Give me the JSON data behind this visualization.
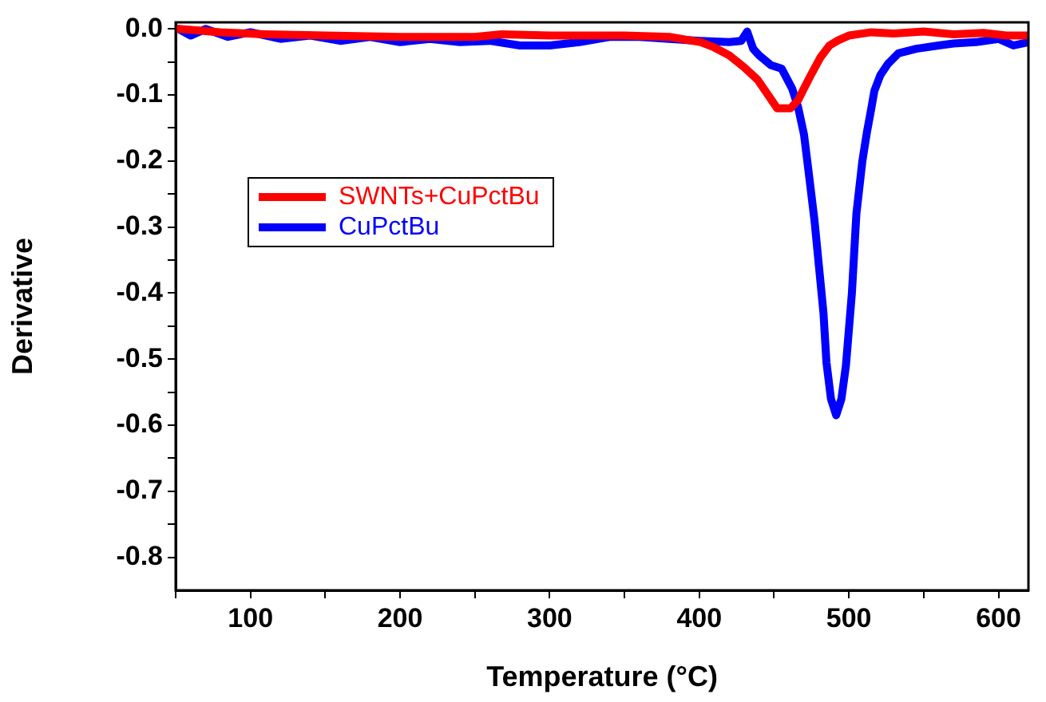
{
  "chart_data": {
    "type": "line",
    "xlabel": "Temperature (°C)",
    "ylabel": "Derivative",
    "xlim": [
      50,
      620
    ],
    "ylim": [
      -0.85,
      0.01
    ],
    "xticks": [
      {
        "value": 50,
        "label": null
      },
      100,
      {
        "value": 150,
        "label": null
      },
      200,
      {
        "value": 250,
        "label": null
      },
      300,
      {
        "value": 350,
        "label": null
      },
      400,
      {
        "value": 450,
        "label": null
      },
      500,
      {
        "value": 550,
        "label": null
      },
      600
    ],
    "yticks": [
      {
        "value": 0,
        "label": "0.0"
      },
      {
        "value": -0.05,
        "label": null
      },
      -0.1,
      {
        "value": -0.15,
        "label": null
      },
      -0.2,
      {
        "value": -0.25,
        "label": null
      },
      -0.3,
      {
        "value": -0.35,
        "label": null
      },
      -0.4,
      {
        "value": -0.45,
        "label": null
      },
      -0.5,
      {
        "value": -0.55,
        "label": null
      },
      -0.6,
      {
        "value": -0.65,
        "label": null
      },
      -0.7,
      {
        "value": -0.75,
        "label": null
      },
      -0.8
    ],
    "grid": false,
    "legend": "top left",
    "marker": "none",
    "line_style": "solid",
    "series": [
      {
        "name": "SWNTs+CuPctBu",
        "color": "#ff0000",
        "x": [
          52,
          80,
          110,
          150,
          200,
          250,
          268,
          300,
          350,
          380,
          401,
          410,
          420,
          430,
          439,
          446,
          452,
          457,
          461,
          466,
          470,
          475,
          481,
          487,
          493,
          500,
          515,
          530,
          550,
          570,
          590,
          605,
          620
        ],
        "values": [
          0,
          -0.005,
          -0.008,
          -0.01,
          -0.012,
          -0.012,
          -0.008,
          -0.01,
          -0.01,
          -0.012,
          -0.02,
          -0.028,
          -0.04,
          -0.058,
          -0.077,
          -0.1,
          -0.12,
          -0.12,
          -0.12,
          -0.108,
          -0.09,
          -0.068,
          -0.043,
          -0.025,
          -0.017,
          -0.01,
          -0.005,
          -0.007,
          -0.004,
          -0.008,
          -0.006,
          -0.01,
          -0.01
        ]
      },
      {
        "name": "CuPctBu",
        "color": "#0000ff",
        "x": [
          52,
          60,
          70,
          85,
          100,
          120,
          140,
          160,
          180,
          200,
          220,
          240,
          260,
          280,
          300,
          320,
          340,
          360,
          380,
          400,
          420,
          428,
          432,
          436,
          440,
          448,
          455,
          462,
          466,
          470,
          473,
          477,
          480,
          483,
          485,
          488,
          491.5,
          495,
          498,
          502,
          505,
          509,
          512,
          515,
          517,
          521,
          526,
          533,
          545,
          560,
          570,
          585,
          600,
          610,
          620
        ],
        "values": [
          0,
          -0.01,
          0,
          -0.012,
          -0.005,
          -0.015,
          -0.01,
          -0.018,
          -0.012,
          -0.02,
          -0.015,
          -0.02,
          -0.018,
          -0.025,
          -0.025,
          -0.02,
          -0.012,
          -0.012,
          -0.015,
          -0.018,
          -0.02,
          -0.018,
          -0.004,
          -0.03,
          -0.04,
          -0.055,
          -0.06,
          -0.09,
          -0.118,
          -0.16,
          -0.215,
          -0.29,
          -0.36,
          -0.43,
          -0.505,
          -0.56,
          -0.585,
          -0.56,
          -0.51,
          -0.4,
          -0.28,
          -0.2,
          -0.157,
          -0.12,
          -0.094,
          -0.07,
          -0.053,
          -0.037,
          -0.03,
          -0.025,
          -0.022,
          -0.02,
          -0.015,
          -0.025,
          -0.02
        ]
      }
    ]
  }
}
